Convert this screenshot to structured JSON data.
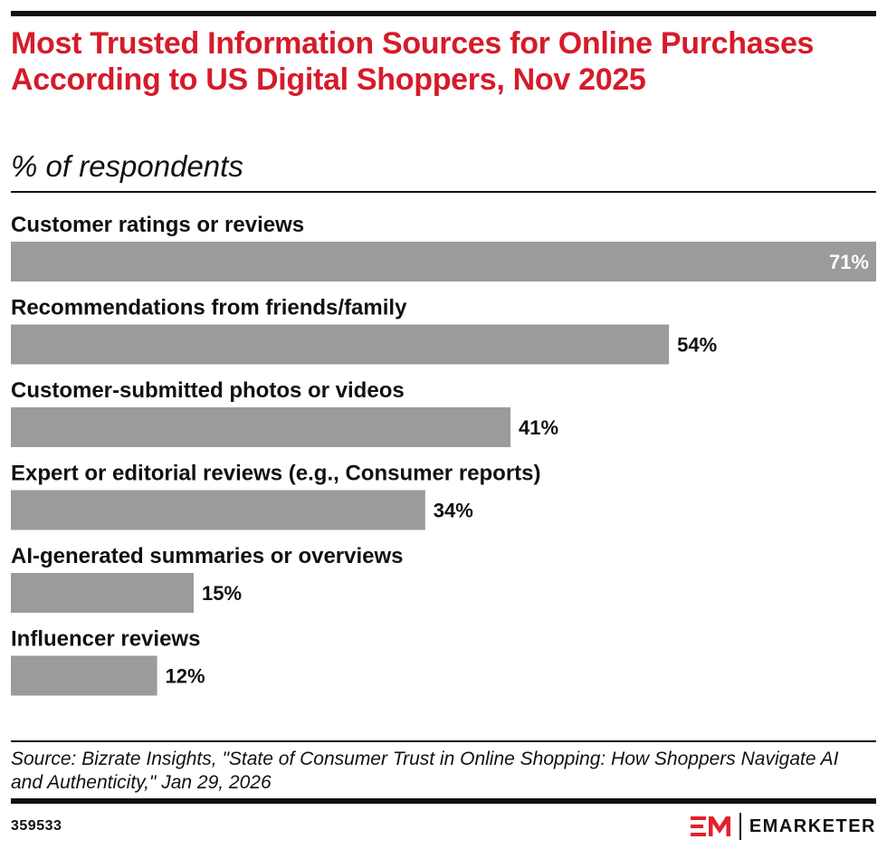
{
  "header": {
    "title": "Most Trusted Information Sources for Online Purchases According to US Digital Shoppers, Nov 2025",
    "subtitle": "% of respondents"
  },
  "colors": {
    "title": "#d51b2a",
    "bar": "#9b9b9b",
    "text": "#111111",
    "label_inside": "#ffffff",
    "brand_accent": "#e4202d"
  },
  "chart_data": {
    "type": "bar",
    "orientation": "horizontal",
    "categories": [
      "Customer ratings or reviews",
      "Recommendations from friends/family",
      "Customer-submitted photos or videos",
      "Expert or editorial reviews (e.g., Consumer reports)",
      "AI-generated summaries or overviews",
      "Influencer reviews"
    ],
    "values": [
      71,
      54,
      41,
      34,
      15,
      12
    ],
    "value_labels": [
      "71%",
      "54%",
      "41%",
      "34%",
      "15%",
      "12%"
    ],
    "title": "Most Trusted Information Sources for Online Purchases According to US Digital Shoppers, Nov 2025",
    "subtitle": "% of respondents",
    "unit": "%",
    "xlim": [
      0,
      71
    ],
    "grid": false,
    "legend": "none"
  },
  "footer": {
    "source": "Source: Bizrate Insights, \"State of Consumer Trust in Online Shopping: How Shoppers Navigate AI and Authenticity,\" Jan 29, 2026",
    "chart_id": "359533",
    "brand_name": "EMARKETER",
    "brand_logo_icon": "em-logo-icon"
  }
}
